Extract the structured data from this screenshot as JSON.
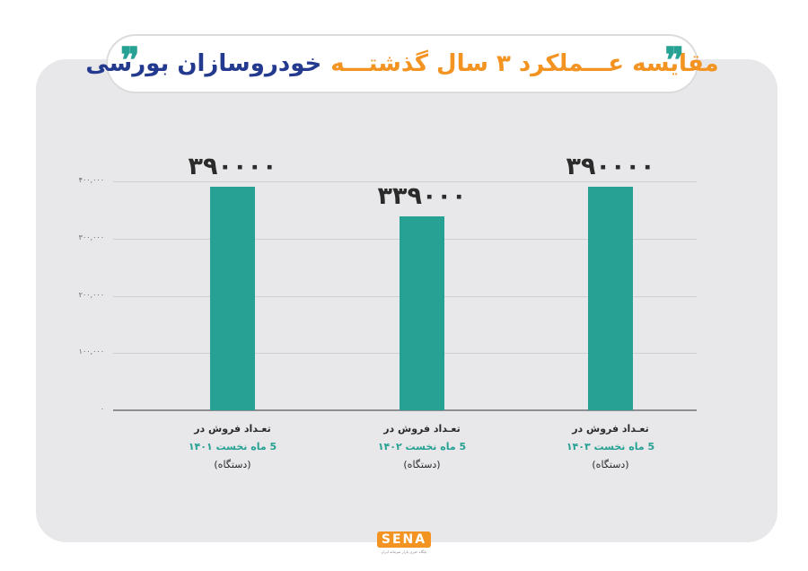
{
  "header": {
    "title_part1": "مقایسه عـــملکرد ۳ سال گذشتـــه",
    "title_part2": "خودروسازان بورسی",
    "quote_right": "❞",
    "quote_left": "❞"
  },
  "chart_data": {
    "type": "bar",
    "title": "مقایسه عملکرد ۳ سال گذشته خودروسازان بورسی",
    "categories": [
      {
        "line1": "تعـداد فروش در",
        "line2": "5 ماه نخست ۱۴۰۱",
        "line3": "(دستگاه)"
      },
      {
        "line1": "تعـداد فروش در",
        "line2": "5 ماه نخست ۱۴۰۲",
        "line3": "(دستگاه)"
      },
      {
        "line1": "تعـداد فروش در",
        "line2": "5 ماه نخست ۱۴۰۳",
        "line3": "(دستگاه)"
      }
    ],
    "values": [
      390000,
      339000,
      390000
    ],
    "value_labels": [
      "۳۹۰۰۰۰",
      "۳۳۹۰۰۰",
      "۳۹۰۰۰۰"
    ],
    "ylim": [
      0,
      400000
    ],
    "yticks": [
      0,
      100000,
      200000,
      300000,
      400000
    ],
    "ytick_labels": [
      "۰",
      "۱۰۰,۰۰۰",
      "۲۰۰,۰۰۰",
      "۳۰۰,۰۰۰",
      "۴۰۰,۰۰۰"
    ],
    "grid": true,
    "bar_color": "#26a193"
  },
  "footer": {
    "logo_text": "SENA",
    "logo_subtitle": "پایگاه خبری بازار سرمایه ایران"
  },
  "colors": {
    "accent_orange": "#f39321",
    "accent_navy": "#233a8e",
    "accent_teal": "#26a193",
    "panel_bg": "#e8e8ea"
  }
}
